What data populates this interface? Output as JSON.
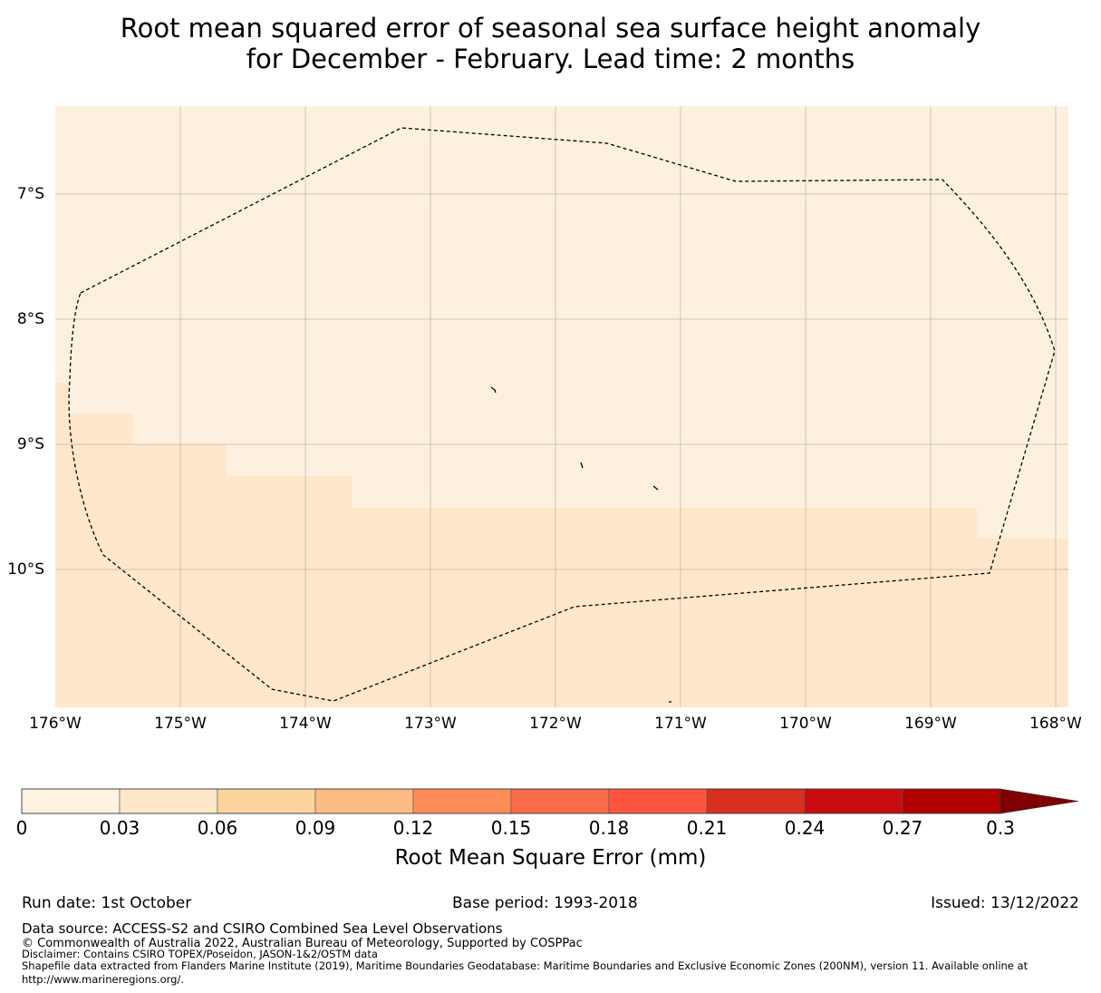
{
  "title": {
    "line1": "Root mean squared error of seasonal sea surface height anomaly",
    "line2": "for December - February. Lead time: 2 months"
  },
  "map": {
    "lat_labels": [
      "7°S",
      "8°S",
      "9°S",
      "10°S"
    ],
    "lon_labels": [
      "176°W",
      "175°W",
      "174°W",
      "173°W",
      "172°W",
      "171°W",
      "170°W",
      "169°W",
      "168°W"
    ],
    "lon_range": [
      -176,
      -167.9
    ],
    "lat_range": [
      -11.15,
      -6.3
    ],
    "field_colors": {
      "base": "#fef0df",
      "higher": "#fee7cb"
    },
    "eez_boundary_style": "dashed"
  },
  "colorbar": {
    "ticks": [
      "0",
      "0.03",
      "0.06",
      "0.09",
      "0.12",
      "0.15",
      "0.18",
      "0.21",
      "0.24",
      "0.27",
      "0.3"
    ],
    "colors": [
      "#fff2e1",
      "#fee6c9",
      "#fdd49e",
      "#fdbb84",
      "#fc8d59",
      "#fc6c4a",
      "#ff5540",
      "#d7301f",
      "#c80c12",
      "#b00000",
      "#7f0000"
    ],
    "label": "Root Mean Square Error (mm)"
  },
  "footer": {
    "run_date": "Run date: 1st October",
    "base_period": "Base period: 1993-2018",
    "issued": "Issued: 13/12/2022",
    "data_source": "Data source: ACCESS-S2 and CSIRO Combined Sea Level Observations",
    "copyright": "© Commonwealth of Australia 2022, Australian Bureau of Meteorology, Supported by COSPPac",
    "disclaimer": "Disclaimer: Contains CSIRO TOPEX/Poseidon, JASON-1&2/OSTM data",
    "shapefile_line1": "Shapefile data extracted from Flanders Marine Institute (2019), Maritime Boundaries Geodatabase: Maritime Boundaries and Exclusive Economic Zones (200NM), version 11. Available online at",
    "shapefile_line2": "http://www.marineregions.org/."
  }
}
